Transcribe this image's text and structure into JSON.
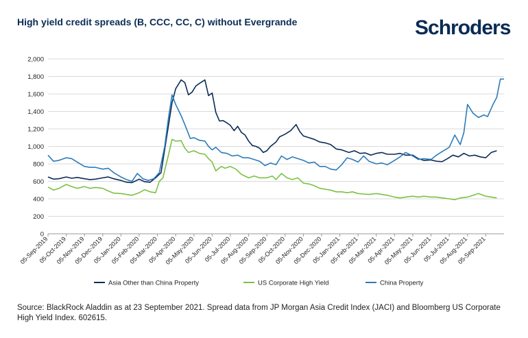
{
  "header": {
    "title": "High yield credit spreads (B, CCC, CC, C) without Evergrande",
    "logo": "Schroders"
  },
  "colors": {
    "asia": "#0b2b55",
    "us": "#7ac143",
    "china": "#2b7bb9",
    "grid": "#d9d9d9"
  },
  "chart_data": {
    "type": "line",
    "title": "High yield credit spreads (B, CCC, CC, C) without Evergrande",
    "xlabel": "",
    "ylabel": "",
    "ylim": [
      0,
      2000
    ],
    "yticks": [
      0,
      200,
      400,
      600,
      800,
      1000,
      1200,
      1400,
      1600,
      1800,
      2000
    ],
    "ytick_labels": [
      "0",
      "200",
      "400",
      "600",
      "800",
      "1,000",
      "1,200",
      "1,400",
      "1,600",
      "1,800",
      "2,000"
    ],
    "xtick_labels": [
      "05-Sep-2019",
      "05-Oct-2019",
      "05-Nov-2019",
      "05-Dec-2019",
      "05-Jan-2020",
      "05-Feb-2020",
      "05-Mar-2020",
      "05-Apr-2020",
      "05-May-2020",
      "05-Jun-2020",
      "05-Jul-2020",
      "05-Aug-2020",
      "05-Sep-2020",
      "05-Oct-2020",
      "05-Nov-2020",
      "05-Dec-2020",
      "05-Jan-2021",
      "05-Feb-2021",
      "05-Mar-2021",
      "05-Apr-2021",
      "05-May-2021",
      "05-Jun-2021",
      "05-Jul-2021",
      "05-Aug-2021",
      "05-Sep-2021"
    ],
    "x_unit": "months since 05-Sep-2019",
    "grid": true,
    "legend_position": "bottom",
    "series": [
      {
        "name": "Asia Other than China Property",
        "color": "#0b2b55",
        "points": [
          [
            0,
            650
          ],
          [
            0.3,
            625
          ],
          [
            0.6,
            630
          ],
          [
            1,
            650
          ],
          [
            1.3,
            635
          ],
          [
            1.6,
            645
          ],
          [
            2,
            630
          ],
          [
            2.3,
            620
          ],
          [
            2.6,
            625
          ],
          [
            3,
            640
          ],
          [
            3.3,
            650
          ],
          [
            3.6,
            630
          ],
          [
            4,
            610
          ],
          [
            4.3,
            590
          ],
          [
            4.6,
            585
          ],
          [
            5,
            625
          ],
          [
            5.3,
            595
          ],
          [
            5.6,
            590
          ],
          [
            5.9,
            640
          ],
          [
            6.2,
            700
          ],
          [
            6.5,
            1100
          ],
          [
            6.8,
            1500
          ],
          [
            7,
            1660
          ],
          [
            7.3,
            1760
          ],
          [
            7.5,
            1730
          ],
          [
            7.7,
            1590
          ],
          [
            7.9,
            1620
          ],
          [
            8.1,
            1690
          ],
          [
            8.3,
            1720
          ],
          [
            8.6,
            1760
          ],
          [
            8.8,
            1580
          ],
          [
            9,
            1610
          ],
          [
            9.2,
            1390
          ],
          [
            9.4,
            1290
          ],
          [
            9.6,
            1295
          ],
          [
            9.8,
            1270
          ],
          [
            10,
            1240
          ],
          [
            10.2,
            1180
          ],
          [
            10.4,
            1230
          ],
          [
            10.6,
            1160
          ],
          [
            10.8,
            1130
          ],
          [
            11,
            1060
          ],
          [
            11.2,
            1010
          ],
          [
            11.4,
            1000
          ],
          [
            11.6,
            980
          ],
          [
            11.8,
            930
          ],
          [
            12,
            950
          ],
          [
            12.2,
            1000
          ],
          [
            12.5,
            1050
          ],
          [
            12.7,
            1110
          ],
          [
            13,
            1140
          ],
          [
            13.3,
            1180
          ],
          [
            13.6,
            1250
          ],
          [
            13.8,
            1170
          ],
          [
            14,
            1120
          ],
          [
            14.3,
            1100
          ],
          [
            14.6,
            1080
          ],
          [
            14.9,
            1050
          ],
          [
            15.2,
            1040
          ],
          [
            15.5,
            1020
          ],
          [
            15.8,
            970
          ],
          [
            16.1,
            960
          ],
          [
            16.5,
            930
          ],
          [
            16.8,
            950
          ],
          [
            17.1,
            920
          ],
          [
            17.4,
            925
          ],
          [
            17.7,
            900
          ],
          [
            18,
            920
          ],
          [
            18.3,
            930
          ],
          [
            18.6,
            910
          ],
          [
            19,
            910
          ],
          [
            19.3,
            920
          ],
          [
            19.6,
            900
          ],
          [
            20,
            900
          ],
          [
            20.3,
            860
          ],
          [
            20.6,
            840
          ],
          [
            21,
            845
          ],
          [
            21.3,
            830
          ],
          [
            21.6,
            825
          ],
          [
            21.9,
            860
          ],
          [
            22.2,
            900
          ],
          [
            22.5,
            880
          ],
          [
            22.8,
            920
          ],
          [
            23.1,
            890
          ],
          [
            23.4,
            900
          ],
          [
            23.7,
            880
          ],
          [
            24,
            870
          ],
          [
            24.3,
            930
          ],
          [
            24.6,
            950
          ]
        ]
      },
      {
        "name": "US Corporate High Yield",
        "color": "#7ac143",
        "points": [
          [
            0,
            535
          ],
          [
            0.3,
            500
          ],
          [
            0.6,
            520
          ],
          [
            1,
            565
          ],
          [
            1.3,
            540
          ],
          [
            1.6,
            520
          ],
          [
            2,
            540
          ],
          [
            2.3,
            520
          ],
          [
            2.6,
            530
          ],
          [
            3,
            520
          ],
          [
            3.3,
            490
          ],
          [
            3.6,
            465
          ],
          [
            4,
            460
          ],
          [
            4.3,
            450
          ],
          [
            4.6,
            440
          ],
          [
            5,
            470
          ],
          [
            5.3,
            505
          ],
          [
            5.6,
            480
          ],
          [
            5.9,
            470
          ],
          [
            6.1,
            600
          ],
          [
            6.3,
            640
          ],
          [
            6.6,
            900
          ],
          [
            6.8,
            1080
          ],
          [
            7,
            1060
          ],
          [
            7.3,
            1065
          ],
          [
            7.5,
            980
          ],
          [
            7.7,
            930
          ],
          [
            8,
            950
          ],
          [
            8.3,
            920
          ],
          [
            8.6,
            910
          ],
          [
            8.8,
            860
          ],
          [
            9,
            820
          ],
          [
            9.2,
            720
          ],
          [
            9.5,
            770
          ],
          [
            9.7,
            750
          ],
          [
            10,
            770
          ],
          [
            10.3,
            740
          ],
          [
            10.6,
            680
          ],
          [
            11,
            640
          ],
          [
            11.3,
            660
          ],
          [
            11.6,
            640
          ],
          [
            12,
            640
          ],
          [
            12.3,
            660
          ],
          [
            12.5,
            620
          ],
          [
            12.8,
            690
          ],
          [
            13.1,
            640
          ],
          [
            13.4,
            620
          ],
          [
            13.7,
            640
          ],
          [
            14,
            580
          ],
          [
            14.3,
            570
          ],
          [
            14.6,
            550
          ],
          [
            14.9,
            520
          ],
          [
            15.2,
            510
          ],
          [
            15.5,
            500
          ],
          [
            15.8,
            480
          ],
          [
            16.1,
            480
          ],
          [
            16.4,
            470
          ],
          [
            16.7,
            480
          ],
          [
            17,
            460
          ],
          [
            17.3,
            455
          ],
          [
            17.6,
            450
          ],
          [
            18,
            460
          ],
          [
            18.3,
            450
          ],
          [
            18.6,
            440
          ],
          [
            19,
            420
          ],
          [
            19.3,
            410
          ],
          [
            19.6,
            420
          ],
          [
            20,
            430
          ],
          [
            20.3,
            420
          ],
          [
            20.6,
            430
          ],
          [
            21,
            420
          ],
          [
            21.3,
            420
          ],
          [
            21.6,
            410
          ],
          [
            22,
            400
          ],
          [
            22.3,
            390
          ],
          [
            22.6,
            410
          ],
          [
            23,
            420
          ],
          [
            23.3,
            440
          ],
          [
            23.6,
            460
          ],
          [
            24,
            430
          ],
          [
            24.3,
            420
          ],
          [
            24.6,
            410
          ]
        ]
      },
      {
        "name": "China Property",
        "color": "#2b7bb9",
        "points": [
          [
            0,
            900
          ],
          [
            0.3,
            830
          ],
          [
            0.6,
            840
          ],
          [
            1,
            870
          ],
          [
            1.3,
            860
          ],
          [
            1.6,
            820
          ],
          [
            2,
            770
          ],
          [
            2.3,
            760
          ],
          [
            2.6,
            760
          ],
          [
            3,
            740
          ],
          [
            3.3,
            750
          ],
          [
            3.6,
            700
          ],
          [
            4,
            650
          ],
          [
            4.3,
            620
          ],
          [
            4.6,
            600
          ],
          [
            4.9,
            690
          ],
          [
            5.2,
            630
          ],
          [
            5.5,
            610
          ],
          [
            5.8,
            630
          ],
          [
            6.1,
            700
          ],
          [
            6.4,
            1000
          ],
          [
            6.6,
            1320
          ],
          [
            6.8,
            1590
          ],
          [
            7,
            1480
          ],
          [
            7.3,
            1350
          ],
          [
            7.5,
            1250
          ],
          [
            7.8,
            1090
          ],
          [
            8,
            1100
          ],
          [
            8.3,
            1070
          ],
          [
            8.6,
            1060
          ],
          [
            8.8,
            1000
          ],
          [
            9,
            960
          ],
          [
            9.2,
            990
          ],
          [
            9.5,
            930
          ],
          [
            9.8,
            920
          ],
          [
            10.1,
            890
          ],
          [
            10.4,
            900
          ],
          [
            10.7,
            870
          ],
          [
            11,
            870
          ],
          [
            11.3,
            850
          ],
          [
            11.6,
            830
          ],
          [
            11.9,
            780
          ],
          [
            12.2,
            810
          ],
          [
            12.5,
            790
          ],
          [
            12.8,
            890
          ],
          [
            13.1,
            850
          ],
          [
            13.4,
            880
          ],
          [
            13.7,
            860
          ],
          [
            14,
            840
          ],
          [
            14.3,
            810
          ],
          [
            14.6,
            820
          ],
          [
            14.9,
            770
          ],
          [
            15.2,
            770
          ],
          [
            15.5,
            740
          ],
          [
            15.8,
            730
          ],
          [
            16.1,
            790
          ],
          [
            16.4,
            870
          ],
          [
            16.7,
            850
          ],
          [
            17,
            820
          ],
          [
            17.3,
            890
          ],
          [
            17.6,
            830
          ],
          [
            18,
            800
          ],
          [
            18.3,
            810
          ],
          [
            18.6,
            790
          ],
          [
            19,
            840
          ],
          [
            19.3,
            880
          ],
          [
            19.6,
            930
          ],
          [
            20,
            890
          ],
          [
            20.3,
            850
          ],
          [
            20.6,
            860
          ],
          [
            21,
            850
          ],
          [
            21.3,
            900
          ],
          [
            21.6,
            940
          ],
          [
            22,
            990
          ],
          [
            22.3,
            1130
          ],
          [
            22.6,
            1020
          ],
          [
            22.8,
            1160
          ],
          [
            23,
            1480
          ],
          [
            23.3,
            1380
          ],
          [
            23.6,
            1330
          ],
          [
            23.9,
            1360
          ],
          [
            24.1,
            1340
          ],
          [
            24.4,
            1480
          ],
          [
            24.6,
            1560
          ],
          [
            24.8,
            1770
          ],
          [
            25,
            1770
          ]
        ]
      }
    ]
  },
  "footer": {
    "source": "Source: BlackRock Aladdin as at 23 September 2021. Spread data from JP Morgan Asia Credit Index (JACI) and Bloomberg US Corporate High Yield Index. 602615."
  }
}
